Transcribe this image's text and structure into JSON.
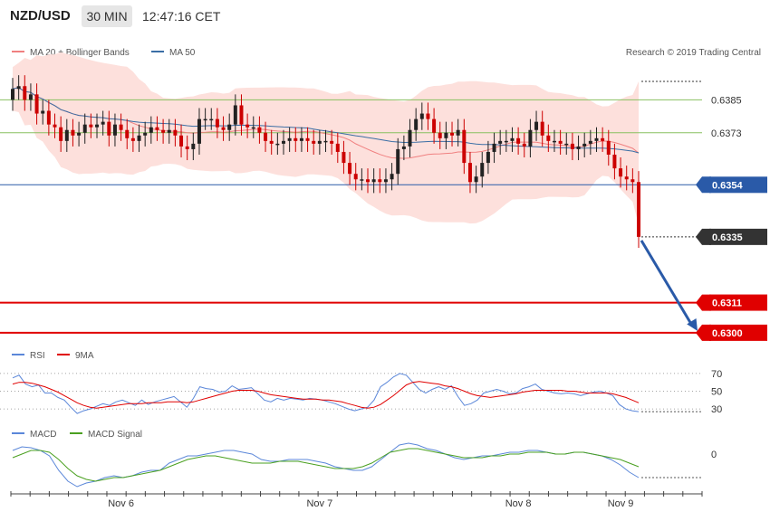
{
  "header": {
    "symbol": "NZD/USD",
    "timeframe": "30 MIN",
    "time": "12:47:16 CET"
  },
  "legend_main": {
    "ma20": "MA 20 + Bollinger Bands",
    "ma50": "MA 50",
    "credit": "Research © 2019 Trading Central"
  },
  "legend_rsi": {
    "rsi": "RSI",
    "ma9": "9MA"
  },
  "legend_macd": {
    "macd": "MACD",
    "signal": "MACD Signal"
  },
  "colors": {
    "bull": "#222222",
    "bear": "#cc0000",
    "band": "#fde0dc",
    "ma20": "#f08080",
    "ma50": "#3a6ea5",
    "level_green": "#88c060",
    "level_blue": "#2a5aa8",
    "level_red": "#e00000",
    "rsi": "#5b87d9",
    "rsi_ma": "#e00000",
    "macd": "#5b87d9",
    "macd_signal": "#4aa020",
    "arrow": "#2a5aa8"
  },
  "chart_data": [
    {
      "type": "candlestick",
      "title": "NZD/USD 30 MIN",
      "ylim": [
        0.6296,
        0.6399
      ],
      "x_labels": [
        {
          "label": "Nov 6",
          "index": 18
        },
        {
          "label": "Nov 7",
          "index": 51
        },
        {
          "label": "Nov 8",
          "index": 84
        },
        {
          "label": "Nov 9",
          "index": 101
        }
      ],
      "close": [
        0.6389,
        0.639,
        0.6385,
        0.6387,
        0.638,
        0.6381,
        0.6376,
        0.6375,
        0.637,
        0.6374,
        0.6372,
        0.6373,
        0.6376,
        0.6375,
        0.6376,
        0.6377,
        0.6372,
        0.6376,
        0.6374,
        0.6371,
        0.637,
        0.6372,
        0.6373,
        0.6375,
        0.6374,
        0.6373,
        0.6374,
        0.6372,
        0.6368,
        0.6367,
        0.6369,
        0.6378,
        0.6378,
        0.6378,
        0.6375,
        0.6374,
        0.6376,
        0.6383,
        0.6376,
        0.6375,
        0.6375,
        0.6373,
        0.637,
        0.6369,
        0.6369,
        0.637,
        0.6371,
        0.637,
        0.6371,
        0.637,
        0.6369,
        0.637,
        0.637,
        0.6369,
        0.6366,
        0.6362,
        0.6358,
        0.6356,
        0.6356,
        0.6355,
        0.6356,
        0.6355,
        0.6356,
        0.6358,
        0.6367,
        0.6368,
        0.6374,
        0.6378,
        0.638,
        0.6378,
        0.6373,
        0.6371,
        0.6373,
        0.6372,
        0.6374,
        0.6362,
        0.6355,
        0.6357,
        0.6362,
        0.6366,
        0.6369,
        0.637,
        0.637,
        0.6371,
        0.6369,
        0.6368,
        0.6374,
        0.6377,
        0.6372,
        0.637,
        0.637,
        0.6369,
        0.6369,
        0.6367,
        0.6368,
        0.6369,
        0.637,
        0.6371,
        0.637,
        0.6365,
        0.636,
        0.6357,
        0.6356,
        0.6355,
        0.6335
      ],
      "levels": [
        {
          "value": 0.6385,
          "label": "0.6385",
          "color": "green"
        },
        {
          "value": 0.6373,
          "label": "0.6373",
          "color": "green"
        },
        {
          "value": 0.6354,
          "label": "0.6354",
          "color": "blue"
        },
        {
          "value": 0.6335,
          "label": "0.6335",
          "color": "current"
        },
        {
          "value": 0.6311,
          "label": "0.6311",
          "color": "red"
        },
        {
          "value": 0.63,
          "label": "0.6300",
          "color": "red"
        }
      ],
      "projection": {
        "from": 0.6335,
        "to": 0.63
      }
    },
    {
      "type": "line",
      "title": "RSI",
      "ylim": [
        22,
        78
      ],
      "yticks": [
        30,
        50,
        70
      ],
      "series": [
        {
          "name": "RSI",
          "values": [
            65,
            68,
            58,
            55,
            57,
            48,
            48,
            43,
            40,
            32,
            25,
            28,
            30,
            33,
            36,
            34,
            38,
            40,
            37,
            34,
            40,
            35,
            38,
            40,
            42,
            44,
            38,
            32,
            42,
            55,
            53,
            52,
            49,
            50,
            56,
            52,
            53,
            54,
            47,
            40,
            38,
            42,
            40,
            42,
            41,
            40,
            42,
            41,
            40,
            38,
            36,
            33,
            30,
            28,
            30,
            32,
            40,
            55,
            60,
            66,
            70,
            68,
            60,
            52,
            48,
            52,
            55,
            52,
            56,
            44,
            34,
            36,
            40,
            48,
            50,
            52,
            50,
            47,
            48,
            53,
            55,
            58,
            52,
            50,
            48,
            47,
            48,
            47,
            45,
            47,
            49,
            50,
            48,
            45,
            35,
            30,
            28,
            27
          ]
        },
        {
          "name": "9MA",
          "values": [
            58,
            60,
            60,
            59,
            57,
            55,
            52,
            49,
            45,
            41,
            37,
            34,
            32,
            31,
            32,
            33,
            34,
            35,
            36,
            36,
            36,
            37,
            37,
            37,
            38,
            38,
            38,
            37,
            38,
            40,
            42,
            44,
            46,
            48,
            50,
            51,
            51,
            51,
            50,
            48,
            46,
            45,
            44,
            43,
            42,
            41,
            41,
            41,
            40,
            40,
            39,
            38,
            36,
            34,
            32,
            31,
            32,
            35,
            40,
            45,
            51,
            57,
            60,
            61,
            60,
            59,
            58,
            56,
            55,
            53,
            50,
            47,
            45,
            44,
            43,
            44,
            45,
            46,
            47,
            49,
            50,
            51,
            51,
            51,
            51,
            51,
            50,
            50,
            49,
            48,
            48,
            48,
            48,
            47,
            45,
            43,
            40,
            37
          ]
        }
      ]
    },
    {
      "type": "line",
      "title": "MACD",
      "yticks": [
        0
      ],
      "series": [
        {
          "name": "MACD",
          "values": [
            0.0004,
            0.0008,
            0.0007,
            0.0004,
            -0.0002,
            -0.0018,
            -0.003,
            -0.0036,
            -0.0032,
            -0.003,
            -0.0026,
            -0.0024,
            -0.0026,
            -0.0024,
            -0.002,
            -0.0018,
            -0.0018,
            -0.001,
            -0.0006,
            -0.0002,
            -0.0002,
            0.0,
            0.0002,
            0.0004,
            0.0004,
            0.0002,
            0.0,
            -0.0006,
            -0.0008,
            -0.0008,
            -0.0006,
            -0.0006,
            -0.0006,
            -0.0008,
            -0.001,
            -0.0014,
            -0.0016,
            -0.0018,
            -0.0018,
            -0.0014,
            -0.0006,
            0.0002,
            0.001,
            0.0012,
            0.001,
            0.0006,
            0.0004,
            0.0,
            -0.0004,
            -0.0006,
            -0.0004,
            -0.0002,
            -0.0002,
            0.0,
            0.0002,
            0.0002,
            0.0004,
            0.0004,
            0.0002,
            0.0,
            0.0,
            0.0002,
            0.0002,
            0.0,
            -0.0002,
            -0.0006,
            -0.0012,
            -0.002,
            -0.0026
          ]
        },
        {
          "name": "MACD Signal",
          "values": [
            -0.0004,
            0.0,
            0.0004,
            0.0004,
            0.0002,
            -0.0006,
            -0.0016,
            -0.0024,
            -0.0028,
            -0.003,
            -0.0028,
            -0.0026,
            -0.0026,
            -0.0024,
            -0.0022,
            -0.002,
            -0.0018,
            -0.0014,
            -0.001,
            -0.0006,
            -0.0004,
            -0.0002,
            -0.0002,
            -0.0004,
            -0.0006,
            -0.0008,
            -0.001,
            -0.001,
            -0.001,
            -0.0008,
            -0.0008,
            -0.0008,
            -0.001,
            -0.0012,
            -0.0014,
            -0.0016,
            -0.0016,
            -0.0016,
            -0.0014,
            -0.001,
            -0.0004,
            0.0002,
            0.0004,
            0.0006,
            0.0006,
            0.0004,
            0.0002,
            0.0,
            -0.0002,
            -0.0004,
            -0.0004,
            -0.0004,
            -0.0002,
            -0.0002,
            0.0,
            0.0,
            0.0002,
            0.0002,
            0.0002,
            0.0,
            0.0,
            0.0002,
            0.0002,
            0.0,
            -0.0002,
            -0.0004,
            -0.0006,
            -0.001,
            -0.0014
          ]
        }
      ]
    }
  ]
}
